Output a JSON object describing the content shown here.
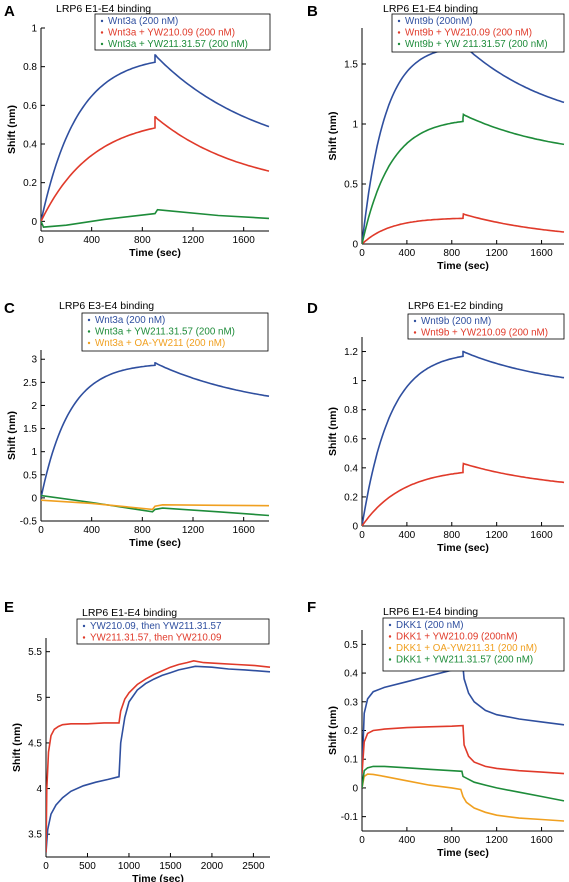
{
  "colors": {
    "blue": "#2f4f9f",
    "red": "#e03a2a",
    "green": "#1e8c3a",
    "orange": "#f0a020",
    "axis": "#000000"
  },
  "chart_data": [
    {
      "panel": "A",
      "type": "line",
      "title": "LRP6 E1-E4 binding",
      "xlabel": "Time (sec)",
      "ylabel": "Shift (nm)",
      "xlim": [
        0,
        1800
      ],
      "ylim": [
        -0.05,
        1.0
      ],
      "xticks": [
        0,
        400,
        800,
        1200,
        1600
      ],
      "yticks": [
        0,
        0.2,
        0.4,
        0.6,
        0.8,
        1
      ],
      "ytick_labels": [
        "0",
        "0.2",
        "0.4",
        "0.6",
        "0.8",
        "1"
      ],
      "legend": "top-right",
      "series": [
        {
          "name": "Wnt3a (200 nM)",
          "color": "blue",
          "kind": "assoc_dissoc",
          "start": 0.0,
          "plateau": 0.86,
          "k_on": 0.0035,
          "t_switch": 900,
          "jump": 0.0,
          "k_off": 0.0012,
          "end": 0.49
        },
        {
          "name": "Wnt3a + YW210.09 (200 nM)",
          "color": "red",
          "kind": "assoc_dissoc",
          "start": 0.0,
          "plateau": 0.54,
          "k_on": 0.0025,
          "t_switch": 900,
          "jump": 0.0,
          "k_off": 0.0014,
          "end": 0.26
        },
        {
          "name": "Wnt3a + YW211.31.57 (200 nM)",
          "color": "green",
          "kind": "points",
          "x": [
            0,
            20,
            200,
            500,
            900,
            920,
            1000,
            1400,
            1800
          ],
          "y": [
            0.0,
            -0.03,
            -0.02,
            0.01,
            0.04,
            0.06,
            0.055,
            0.03,
            0.015
          ]
        }
      ]
    },
    {
      "panel": "B",
      "type": "line",
      "title": "LRP6 E1-E4 binding",
      "xlabel": "Time (sec)",
      "ylabel": "Shift (nm)",
      "xlim": [
        0,
        1800
      ],
      "ylim": [
        0,
        1.8
      ],
      "xticks": [
        0,
        400,
        800,
        1200,
        1600
      ],
      "yticks": [
        0,
        0.5,
        1,
        1.5
      ],
      "ytick_labels": [
        "0",
        "0.5",
        "1",
        "1.5"
      ],
      "legend": "top-right",
      "series": [
        {
          "name": "Wnt9b (200nM)",
          "color": "blue",
          "kind": "assoc_dissoc",
          "start": 0.0,
          "plateau": 1.66,
          "k_on": 0.005,
          "t_switch": 900,
          "jump": 0.0,
          "k_off": 0.0012,
          "end": 1.18
        },
        {
          "name": "Wnt9b + YW210.09 (200 nM)",
          "color": "red",
          "kind": "assoc_dissoc",
          "start": 0.0,
          "plateau": 0.22,
          "k_on": 0.004,
          "t_switch": 900,
          "jump": 0.03,
          "k_off": 0.0012,
          "end": 0.1
        },
        {
          "name": "Wnt9b + YW 211.31.57 (200 nM)",
          "color": "green",
          "kind": "assoc_dissoc",
          "start": 0.0,
          "plateau": 1.05,
          "k_on": 0.004,
          "t_switch": 900,
          "jump": 0.03,
          "k_off": 0.0012,
          "end": 0.83
        }
      ]
    },
    {
      "panel": "C",
      "type": "line",
      "title": "LRP6 E3-E4 binding",
      "xlabel": "Time (sec)",
      "ylabel": "Shift (nm)",
      "xlim": [
        0,
        1800
      ],
      "ylim": [
        -0.5,
        3.2
      ],
      "xticks": [
        0,
        400,
        800,
        1200,
        1600
      ],
      "yticks": [
        -0.5,
        0,
        0.5,
        1,
        1.5,
        2,
        2.5,
        3
      ],
      "ytick_labels": [
        "-0.5",
        "0",
        "0.5",
        "1",
        "1.5",
        "2",
        "2.5",
        "3"
      ],
      "legend": "top-right",
      "series": [
        {
          "name": "Wnt3a (200 nM)",
          "color": "blue",
          "kind": "assoc_dissoc",
          "start": 0.0,
          "plateau": 2.92,
          "k_on": 0.0045,
          "t_switch": 900,
          "jump": 0.0,
          "k_off": 0.0012,
          "end": 2.2
        },
        {
          "name": "Wnt3a + YW211.31.57 (200 nM)",
          "color": "green",
          "kind": "points",
          "x": [
            0,
            400,
            880,
            900,
            960,
            1400,
            1800
          ],
          "y": [
            0.05,
            -0.1,
            -0.3,
            -0.25,
            -0.22,
            -0.3,
            -0.38
          ]
        },
        {
          "name": "Wnt3a + OA-YW211 (200 nM)",
          "color": "orange",
          "kind": "points",
          "x": [
            0,
            400,
            880,
            900,
            960,
            1400,
            1800
          ],
          "y": [
            -0.05,
            -0.12,
            -0.25,
            -0.18,
            -0.15,
            -0.16,
            -0.17
          ]
        }
      ]
    },
    {
      "panel": "D",
      "type": "line",
      "title": "LRP6 E1-E2 binding",
      "xlabel": "Time (sec)",
      "ylabel": "Shift (nm)",
      "xlim": [
        0,
        1800
      ],
      "ylim": [
        0,
        1.3
      ],
      "xticks": [
        0,
        400,
        800,
        1200,
        1600
      ],
      "yticks": [
        0,
        0.2,
        0.4,
        0.6,
        0.8,
        1,
        1.2
      ],
      "ytick_labels": [
        "0",
        "0.2",
        "0.4",
        "0.6",
        "0.8",
        "1",
        "1.2"
      ],
      "legend": "top-right",
      "series": [
        {
          "name": "Wnt9b (200 nM)",
          "color": "blue",
          "kind": "assoc_dissoc",
          "start": 0.0,
          "plateau": 1.2,
          "k_on": 0.004,
          "t_switch": 900,
          "jump": 0.0,
          "k_off": 0.0012,
          "end": 1.02
        },
        {
          "name": "Wnt9b + YW210.09 (200 nM)",
          "color": "red",
          "kind": "assoc_dissoc",
          "start": 0.0,
          "plateau": 0.4,
          "k_on": 0.0028,
          "t_switch": 900,
          "jump": 0.03,
          "k_off": 0.0012,
          "end": 0.3
        }
      ]
    },
    {
      "panel": "E",
      "type": "line",
      "title": "LRP6 E1-E4 binding",
      "xlabel": "Time (sec)",
      "ylabel": "Shift (nm)",
      "xlim": [
        0,
        2700
      ],
      "ylim": [
        3.25,
        5.65
      ],
      "xticks": [
        0,
        500,
        1000,
        1500,
        2000,
        2500
      ],
      "yticks": [
        3.5,
        4,
        4.5,
        5,
        5.5
      ],
      "ytick_labels": [
        "3.5",
        "4",
        "4.5",
        "5",
        "5.5"
      ],
      "legend": "top-right",
      "series": [
        {
          "name": "YW210.09, then YW211.31.57",
          "color": "blue",
          "kind": "points",
          "x": [
            0,
            20,
            60,
            120,
            200,
            300,
            450,
            600,
            750,
            880,
            900,
            950,
            1000,
            1100,
            1200,
            1300,
            1400,
            1500,
            1600,
            1700,
            1800,
            2000,
            2200,
            2400,
            2700
          ],
          "y": [
            3.3,
            3.55,
            3.72,
            3.82,
            3.9,
            3.97,
            4.03,
            4.07,
            4.1,
            4.13,
            4.5,
            4.78,
            4.95,
            5.08,
            5.15,
            5.2,
            5.24,
            5.27,
            5.3,
            5.32,
            5.34,
            5.33,
            5.31,
            5.3,
            5.28
          ]
        },
        {
          "name": "YW211.31.57, then YW210.09",
          "color": "red",
          "kind": "points",
          "x": [
            0,
            10,
            30,
            60,
            100,
            150,
            200,
            300,
            500,
            700,
            880,
            900,
            950,
            1000,
            1100,
            1200,
            1300,
            1400,
            1500,
            1600,
            1700,
            1780,
            1900,
            2100,
            2300,
            2500,
            2700
          ],
          "y": [
            3.3,
            4.0,
            4.4,
            4.58,
            4.65,
            4.68,
            4.7,
            4.71,
            4.71,
            4.72,
            4.72,
            4.85,
            4.98,
            5.05,
            5.14,
            5.2,
            5.25,
            5.29,
            5.33,
            5.36,
            5.38,
            5.4,
            5.38,
            5.37,
            5.36,
            5.35,
            5.33
          ]
        }
      ]
    },
    {
      "panel": "F",
      "type": "line",
      "title": "LRP6 E1-E4 binding",
      "xlabel": "Time (sec)",
      "ylabel": "Shift (nm)",
      "xlim": [
        0,
        1800
      ],
      "ylim": [
        -0.15,
        0.55
      ],
      "xticks": [
        0,
        400,
        800,
        1200,
        1600
      ],
      "yticks": [
        -0.1,
        0,
        0.1,
        0.2,
        0.3,
        0.4,
        0.5
      ],
      "ytick_labels": [
        "-0.1",
        "0",
        "0.1",
        "0.2",
        "0.3",
        "0.4",
        "0.5"
      ],
      "legend": "top-right",
      "series": [
        {
          "name": "DKK1 (200 nM)",
          "color": "blue",
          "kind": "points",
          "x": [
            0,
            20,
            50,
            100,
            200,
            400,
            600,
            800,
            900,
            910,
            950,
            1000,
            1100,
            1200,
            1400,
            1600,
            1800
          ],
          "y": [
            0.05,
            0.26,
            0.31,
            0.335,
            0.35,
            0.37,
            0.39,
            0.41,
            0.42,
            0.38,
            0.33,
            0.3,
            0.27,
            0.255,
            0.24,
            0.23,
            0.22
          ]
        },
        {
          "name": "DKK1 + YW210.09 (200nM)",
          "color": "red",
          "kind": "points",
          "x": [
            0,
            20,
            50,
            100,
            200,
            400,
            600,
            800,
            900,
            910,
            950,
            1000,
            1100,
            1200,
            1400,
            1600,
            1800
          ],
          "y": [
            0.05,
            0.16,
            0.19,
            0.2,
            0.205,
            0.21,
            0.213,
            0.215,
            0.217,
            0.15,
            0.11,
            0.09,
            0.075,
            0.068,
            0.06,
            0.055,
            0.05
          ]
        },
        {
          "name": "DKK1 + OA-YW211.31 (200 nM)",
          "color": "orange",
          "kind": "points",
          "x": [
            0,
            20,
            50,
            100,
            200,
            400,
            600,
            800,
            880,
            900,
            930,
            1000,
            1100,
            1200,
            1400,
            1600,
            1800
          ],
          "y": [
            0.0,
            0.04,
            0.048,
            0.047,
            0.04,
            0.025,
            0.01,
            0.0,
            -0.005,
            -0.03,
            -0.05,
            -0.07,
            -0.085,
            -0.095,
            -0.105,
            -0.11,
            -0.115
          ]
        },
        {
          "name": "DKK1 + YW211.31.57 (200 nM)",
          "color": "green",
          "kind": "points",
          "x": [
            0,
            20,
            50,
            100,
            200,
            400,
            600,
            800,
            890,
            900,
            950,
            1000,
            1100,
            1200,
            1400,
            1600,
            1800
          ],
          "y": [
            0.0,
            0.06,
            0.07,
            0.075,
            0.075,
            0.07,
            0.065,
            0.06,
            0.058,
            0.04,
            0.03,
            0.02,
            0.01,
            0.0,
            -0.015,
            -0.03,
            -0.045
          ]
        }
      ]
    }
  ]
}
